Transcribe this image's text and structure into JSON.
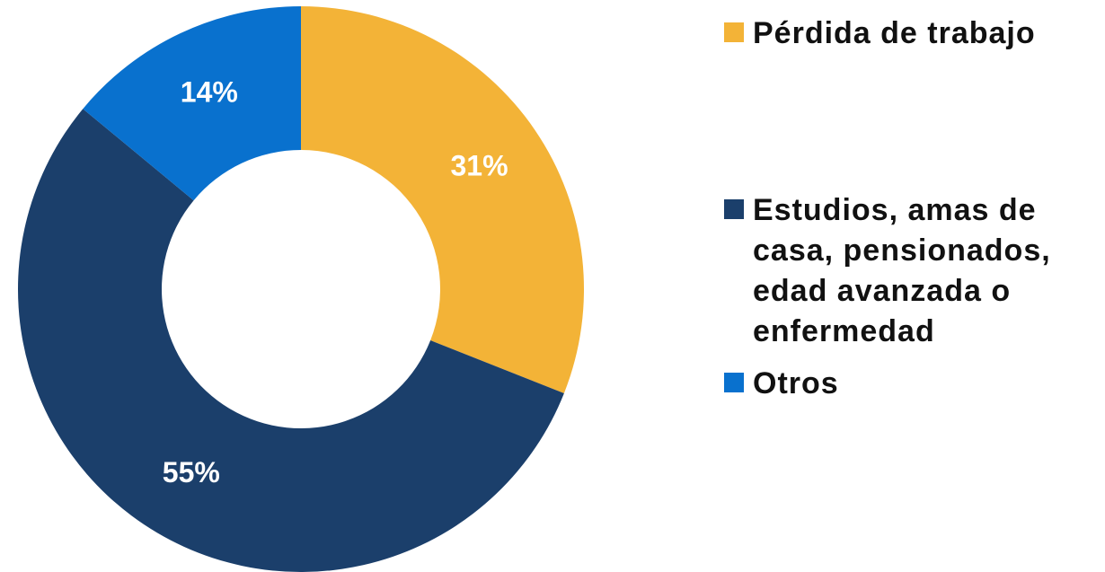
{
  "chart_data": {
    "type": "donut",
    "categories": [
      "Pérdida de trabajo",
      "Estudios, amas de casa, pensionados, edad avanzada o enfermedad",
      "Otros"
    ],
    "values": [
      31,
      55,
      14
    ],
    "value_labels": [
      "31%",
      "55%",
      "14%"
    ],
    "colors": [
      "#F3B337",
      "#1B3F6B",
      "#0971CE"
    ],
    "legend": "right"
  }
}
